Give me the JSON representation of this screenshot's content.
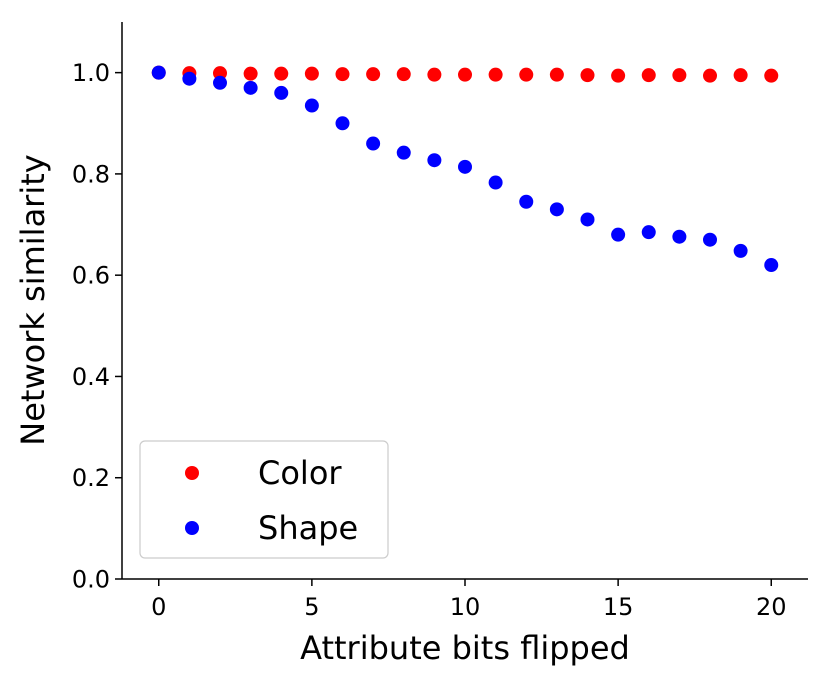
{
  "chart_data": {
    "type": "scatter",
    "xlabel": "Attribute bits flipped",
    "ylabel": "Network similarity",
    "xlim": [
      -1.2,
      21.2
    ],
    "ylim": [
      0,
      1.1
    ],
    "xticks": [
      "0",
      "5",
      "10",
      "15",
      "20"
    ],
    "yticks": [
      "0.0",
      "0.2",
      "0.4",
      "0.6",
      "0.8",
      "1.0"
    ],
    "grid": false,
    "legend_position": "lower-left",
    "series": [
      {
        "name": "Color",
        "color": "#ff0000",
        "x": [
          0,
          1,
          2,
          3,
          4,
          5,
          6,
          7,
          8,
          9,
          10,
          11,
          12,
          13,
          14,
          15,
          16,
          17,
          18,
          19,
          20
        ],
        "y": [
          1.0,
          0.999,
          0.999,
          0.998,
          0.998,
          0.998,
          0.997,
          0.997,
          0.997,
          0.996,
          0.996,
          0.996,
          0.996,
          0.996,
          0.995,
          0.994,
          0.995,
          0.995,
          0.994,
          0.995,
          0.994
        ]
      },
      {
        "name": "Shape",
        "color": "#0000ff",
        "x": [
          0,
          1,
          2,
          3,
          4,
          5,
          6,
          7,
          8,
          9,
          10,
          11,
          12,
          13,
          14,
          15,
          16,
          17,
          18,
          19,
          20
        ],
        "y": [
          1.0,
          0.988,
          0.98,
          0.97,
          0.96,
          0.935,
          0.9,
          0.86,
          0.842,
          0.827,
          0.814,
          0.783,
          0.745,
          0.73,
          0.71,
          0.68,
          0.685,
          0.676,
          0.67,
          0.648,
          0.62
        ]
      }
    ]
  }
}
